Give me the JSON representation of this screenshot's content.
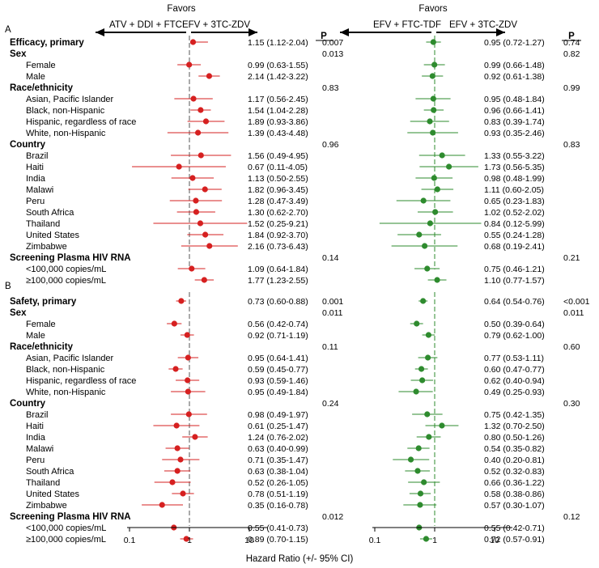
{
  "chart_data": {
    "type": "forest",
    "xlabel": "Hazard Ratio (+/- 95% CI)",
    "x_scale": "log",
    "x_range": [
      0.1,
      20
    ],
    "x_ticks": [
      "0.1",
      "1",
      "10"
    ],
    "headers": {
      "favors": "Favors",
      "p": "P",
      "left_favors_1": "ATV + DDI + FTC",
      "right_favors_1": "EFV + 3TC-ZDV",
      "left_favors_2": "EFV + FTC-TDF",
      "right_favors_2": "EFV + 3TC-ZDV"
    },
    "panels": [
      {
        "label": "A",
        "rows": [
          {
            "label": "Efficacy, primary",
            "bold": true
          },
          {
            "label": "Sex",
            "bold": true
          },
          {
            "label": "Female"
          },
          {
            "label": "Male"
          },
          {
            "label": "Race/ethnicity",
            "bold": true
          },
          {
            "label": "Asian, Pacific Islander"
          },
          {
            "label": "Black, non-Hispanic"
          },
          {
            "label": "Hispanic, regardless of race"
          },
          {
            "label": "White, non-Hispanic"
          },
          {
            "label": "Country",
            "bold": true
          },
          {
            "label": "Brazil"
          },
          {
            "label": "Haiti"
          },
          {
            "label": "India"
          },
          {
            "label": "Malawi"
          },
          {
            "label": "Peru"
          },
          {
            "label": "South Africa"
          },
          {
            "label": "Thailand"
          },
          {
            "label": "United States"
          },
          {
            "label": "Zimbabwe"
          },
          {
            "label": "Screening Plasma HIV RNA",
            "bold": true
          },
          {
            "label": "<100,000 copies/mL"
          },
          {
            "label": "≥100,000 copies/mL"
          }
        ],
        "left": {
          "color": "#d62020",
          "estimates": [
            {
              "row": 0,
              "hr": 1.15,
              "lo": 1.12,
              "hi": 2.04,
              "text": "1.15 (1.12-2.04)"
            },
            {
              "row": 2,
              "hr": 0.99,
              "lo": 0.63,
              "hi": 1.55,
              "text": "0.99 (0.63-1.55)"
            },
            {
              "row": 3,
              "hr": 2.14,
              "lo": 1.42,
              "hi": 3.22,
              "text": "2.14 (1.42-3.22)"
            },
            {
              "row": 5,
              "hr": 1.17,
              "lo": 0.56,
              "hi": 2.45,
              "text": "1.17 (0.56-2.45)"
            },
            {
              "row": 6,
              "hr": 1.54,
              "lo": 1.04,
              "hi": 2.28,
              "text": "1.54 (1.04-2.28)"
            },
            {
              "row": 7,
              "hr": 1.89,
              "lo": 0.93,
              "hi": 3.86,
              "text": "1.89 (0.93-3.86)"
            },
            {
              "row": 8,
              "hr": 1.39,
              "lo": 0.43,
              "hi": 4.48,
              "text": "1.39 (0.43-4.48)"
            },
            {
              "row": 10,
              "hr": 1.56,
              "lo": 0.49,
              "hi": 4.95,
              "text": "1.56 (0.49-4.95)"
            },
            {
              "row": 11,
              "hr": 0.67,
              "lo": 0.11,
              "hi": 4.05,
              "text": "0.67 (0.11-4.05)"
            },
            {
              "row": 12,
              "hr": 1.13,
              "lo": 0.5,
              "hi": 2.55,
              "text": "1.13 (0.50-2.55)"
            },
            {
              "row": 13,
              "hr": 1.82,
              "lo": 0.96,
              "hi": 3.45,
              "text": "1.82 (0.96-3.45)"
            },
            {
              "row": 14,
              "hr": 1.28,
              "lo": 0.47,
              "hi": 3.49,
              "text": "1.28 (0.47-3.49)"
            },
            {
              "row": 15,
              "hr": 1.3,
              "lo": 0.62,
              "hi": 2.7,
              "text": "1.30 (0.62-2.70)"
            },
            {
              "row": 16,
              "hr": 1.52,
              "lo": 0.25,
              "hi": 9.21,
              "text": "1.52 (0.25-9.21)"
            },
            {
              "row": 17,
              "hr": 1.84,
              "lo": 0.92,
              "hi": 3.7,
              "text": "1.84 (0.92-3.70)"
            },
            {
              "row": 18,
              "hr": 2.16,
              "lo": 0.73,
              "hi": 6.43,
              "text": "2.16 (0.73-6.43)"
            },
            {
              "row": 20,
              "hr": 1.09,
              "lo": 0.64,
              "hi": 1.84,
              "text": "1.09 (0.64-1.84)"
            },
            {
              "row": 21,
              "hr": 1.77,
              "lo": 1.23,
              "hi": 2.55,
              "text": "1.77 (1.23-2.55)"
            }
          ],
          "p_values": [
            {
              "row": 0,
              "text": "0.007"
            },
            {
              "row": 1,
              "text": "0.013"
            },
            {
              "row": 4,
              "text": "0.83"
            },
            {
              "row": 9,
              "text": "0.96"
            },
            {
              "row": 19,
              "text": "0.14"
            }
          ]
        },
        "right": {
          "color": "#2e8b2e",
          "estimates": [
            {
              "row": 0,
              "hr": 0.95,
              "lo": 0.72,
              "hi": 1.27,
              "text": "0.95 (0.72-1.27)"
            },
            {
              "row": 2,
              "hr": 0.99,
              "lo": 0.66,
              "hi": 1.48,
              "text": "0.99 (0.66-1.48)"
            },
            {
              "row": 3,
              "hr": 0.92,
              "lo": 0.61,
              "hi": 1.38,
              "text": "0.92 (0.61-1.38)"
            },
            {
              "row": 5,
              "hr": 0.95,
              "lo": 0.48,
              "hi": 1.84,
              "text": "0.95 (0.48-1.84)"
            },
            {
              "row": 6,
              "hr": 0.96,
              "lo": 0.66,
              "hi": 1.41,
              "text": "0.96 (0.66-1.41)"
            },
            {
              "row": 7,
              "hr": 0.83,
              "lo": 0.39,
              "hi": 1.74,
              "text": "0.83 (0.39-1.74)"
            },
            {
              "row": 8,
              "hr": 0.93,
              "lo": 0.35,
              "hi": 2.46,
              "text": "0.93 (0.35-2.46)"
            },
            {
              "row": 10,
              "hr": 1.33,
              "lo": 0.55,
              "hi": 3.22,
              "text": "1.33 (0.55-3.22)"
            },
            {
              "row": 11,
              "hr": 1.73,
              "lo": 0.56,
              "hi": 5.35,
              "text": "1.73 (0.56-5.35)"
            },
            {
              "row": 12,
              "hr": 0.98,
              "lo": 0.48,
              "hi": 1.99,
              "text": "0.98 (0.48-1.99)"
            },
            {
              "row": 13,
              "hr": 1.11,
              "lo": 0.6,
              "hi": 2.05,
              "text": "1.11 (0.60-2.05)"
            },
            {
              "row": 14,
              "hr": 0.65,
              "lo": 0.23,
              "hi": 1.83,
              "text": "0.65 (0.23-1.83)"
            },
            {
              "row": 15,
              "hr": 1.02,
              "lo": 0.52,
              "hi": 2.02,
              "text": "1.02 (0.52-2.02)"
            },
            {
              "row": 16,
              "hr": 0.84,
              "lo": 0.12,
              "hi": 5.99,
              "text": "0.84 (0.12-5.99)"
            },
            {
              "row": 17,
              "hr": 0.55,
              "lo": 0.24,
              "hi": 1.28,
              "text": "0.55 (0.24-1.28)"
            },
            {
              "row": 18,
              "hr": 0.68,
              "lo": 0.19,
              "hi": 2.41,
              "text": "0.68 (0.19-2.41)"
            },
            {
              "row": 20,
              "hr": 0.75,
              "lo": 0.46,
              "hi": 1.21,
              "text": "0.75 (0.46-1.21)"
            },
            {
              "row": 21,
              "hr": 1.1,
              "lo": 0.77,
              "hi": 1.57,
              "text": "1.10 (0.77-1.57)"
            }
          ],
          "p_values": [
            {
              "row": 0,
              "text": "0.74"
            },
            {
              "row": 1,
              "text": "0.82"
            },
            {
              "row": 4,
              "text": "0.99"
            },
            {
              "row": 9,
              "text": "0.83"
            },
            {
              "row": 19,
              "text": "0.21"
            }
          ]
        }
      },
      {
        "label": "B",
        "rows": [
          {
            "label": "Safety, primary",
            "bold": true
          },
          {
            "label": "Sex",
            "bold": true
          },
          {
            "label": "Female"
          },
          {
            "label": "Male"
          },
          {
            "label": "Race/ethnicity",
            "bold": true
          },
          {
            "label": "Asian, Pacific Islander"
          },
          {
            "label": "Black, non-Hispanic"
          },
          {
            "label": "Hispanic, regardless of race"
          },
          {
            "label": "White, non-Hispanic"
          },
          {
            "label": "Country",
            "bold": true
          },
          {
            "label": "Brazil"
          },
          {
            "label": "Haiti"
          },
          {
            "label": "India"
          },
          {
            "label": "Malawi"
          },
          {
            "label": "Peru"
          },
          {
            "label": "South Africa"
          },
          {
            "label": "Thailand"
          },
          {
            "label": "United States"
          },
          {
            "label": "Zimbabwe"
          },
          {
            "label": "Screening Plasma HIV RNA",
            "bold": true
          },
          {
            "label": "<100,000 copies/mL"
          },
          {
            "label": "≥100,000 copies/mL"
          }
        ],
        "left": {
          "color": "#d62020",
          "estimates": [
            {
              "row": 0,
              "hr": 0.73,
              "lo": 0.6,
              "hi": 0.88,
              "text": "0.73 (0.60-0.88)"
            },
            {
              "row": 2,
              "hr": 0.56,
              "lo": 0.42,
              "hi": 0.74,
              "text": "0.56 (0.42-0.74)"
            },
            {
              "row": 3,
              "hr": 0.92,
              "lo": 0.71,
              "hi": 1.19,
              "text": "0.92 (0.71-1.19)"
            },
            {
              "row": 5,
              "hr": 0.95,
              "lo": 0.64,
              "hi": 1.41,
              "text": "0.95 (0.64-1.41)"
            },
            {
              "row": 6,
              "hr": 0.59,
              "lo": 0.45,
              "hi": 0.77,
              "text": "0.59 (0.45-0.77)"
            },
            {
              "row": 7,
              "hr": 0.93,
              "lo": 0.59,
              "hi": 1.46,
              "text": "0.93 (0.59-1.46)"
            },
            {
              "row": 8,
              "hr": 0.95,
              "lo": 0.49,
              "hi": 1.84,
              "text": "0.95 (0.49-1.84)"
            },
            {
              "row": 10,
              "hr": 0.98,
              "lo": 0.49,
              "hi": 1.97,
              "text": "0.98 (0.49-1.97)"
            },
            {
              "row": 11,
              "hr": 0.61,
              "lo": 0.25,
              "hi": 1.47,
              "text": "0.61 (0.25-1.47)"
            },
            {
              "row": 12,
              "hr": 1.24,
              "lo": 0.76,
              "hi": 2.02,
              "text": "1.24 (0.76-2.02)"
            },
            {
              "row": 13,
              "hr": 0.63,
              "lo": 0.4,
              "hi": 0.99,
              "text": "0.63 (0.40-0.99)"
            },
            {
              "row": 14,
              "hr": 0.71,
              "lo": 0.35,
              "hi": 1.47,
              "text": "0.71 (0.35-1.47)"
            },
            {
              "row": 15,
              "hr": 0.63,
              "lo": 0.38,
              "hi": 1.04,
              "text": "0.63 (0.38-1.04)"
            },
            {
              "row": 16,
              "hr": 0.52,
              "lo": 0.26,
              "hi": 1.05,
              "text": "0.52 (0.26-1.05)"
            },
            {
              "row": 17,
              "hr": 0.78,
              "lo": 0.51,
              "hi": 1.19,
              "text": "0.78 (0.51-1.19)"
            },
            {
              "row": 18,
              "hr": 0.35,
              "lo": 0.16,
              "hi": 0.78,
              "text": "0.35 (0.16-0.78)"
            },
            {
              "row": 20,
              "hr": 0.55,
              "lo": 0.41,
              "hi": 0.73,
              "text": "0.55 (0.41-0.73)"
            },
            {
              "row": 21,
              "hr": 0.89,
              "lo": 0.7,
              "hi": 1.15,
              "text": "0.89 (0.70-1.15)"
            }
          ],
          "p_values": [
            {
              "row": 0,
              "text": "0.001"
            },
            {
              "row": 1,
              "text": "0.011"
            },
            {
              "row": 4,
              "text": "0.11"
            },
            {
              "row": 9,
              "text": "0.24"
            },
            {
              "row": 19,
              "text": "0.012"
            }
          ]
        },
        "right": {
          "color": "#2e8b2e",
          "estimates": [
            {
              "row": 0,
              "hr": 0.64,
              "lo": 0.54,
              "hi": 0.76,
              "text": "0.64 (0.54-0.76)"
            },
            {
              "row": 2,
              "hr": 0.5,
              "lo": 0.39,
              "hi": 0.64,
              "text": "0.50 (0.39-0.64)"
            },
            {
              "row": 3,
              "hr": 0.79,
              "lo": 0.62,
              "hi": 1.0,
              "text": "0.79 (0.62-1.00)"
            },
            {
              "row": 5,
              "hr": 0.77,
              "lo": 0.53,
              "hi": 1.11,
              "text": "0.77 (0.53-1.11)"
            },
            {
              "row": 6,
              "hr": 0.6,
              "lo": 0.47,
              "hi": 0.77,
              "text": "0.60 (0.47-0.77)"
            },
            {
              "row": 7,
              "hr": 0.62,
              "lo": 0.4,
              "hi": 0.94,
              "text": "0.62 (0.40-0.94)"
            },
            {
              "row": 8,
              "hr": 0.49,
              "lo": 0.25,
              "hi": 0.93,
              "text": "0.49 (0.25-0.93)"
            },
            {
              "row": 10,
              "hr": 0.75,
              "lo": 0.42,
              "hi": 1.35,
              "text": "0.75 (0.42-1.35)"
            },
            {
              "row": 11,
              "hr": 1.32,
              "lo": 0.7,
              "hi": 2.5,
              "text": "1.32 (0.70-2.50)"
            },
            {
              "row": 12,
              "hr": 0.8,
              "lo": 0.5,
              "hi": 1.26,
              "text": "0.80 (0.50-1.26)"
            },
            {
              "row": 13,
              "hr": 0.54,
              "lo": 0.35,
              "hi": 0.82,
              "text": "0.54 (0.35-0.82)"
            },
            {
              "row": 14,
              "hr": 0.4,
              "lo": 0.2,
              "hi": 0.81,
              "text": "0.40 (0.20-0.81)"
            },
            {
              "row": 15,
              "hr": 0.52,
              "lo": 0.32,
              "hi": 0.83,
              "text": "0.52 (0.32-0.83)"
            },
            {
              "row": 16,
              "hr": 0.66,
              "lo": 0.36,
              "hi": 1.22,
              "text": "0.66 (0.36-1.22)"
            },
            {
              "row": 17,
              "hr": 0.58,
              "lo": 0.38,
              "hi": 0.86,
              "text": "0.58 (0.38-0.86)"
            },
            {
              "row": 18,
              "hr": 0.57,
              "lo": 0.3,
              "hi": 1.07,
              "text": "0.57 (0.30-1.07)"
            },
            {
              "row": 20,
              "hr": 0.55,
              "lo": 0.42,
              "hi": 0.71,
              "text": "0.55 (0.42-0.71)"
            },
            {
              "row": 21,
              "hr": 0.72,
              "lo": 0.57,
              "hi": 0.91,
              "text": "0.72 (0.57-0.91)"
            }
          ],
          "p_values": [
            {
              "row": 0,
              "text": "<0.001"
            },
            {
              "row": 1,
              "text": "0.011"
            },
            {
              "row": 4,
              "text": "0.60"
            },
            {
              "row": 9,
              "text": "0.30"
            },
            {
              "row": 19,
              "text": "0.12"
            }
          ]
        }
      }
    ]
  }
}
